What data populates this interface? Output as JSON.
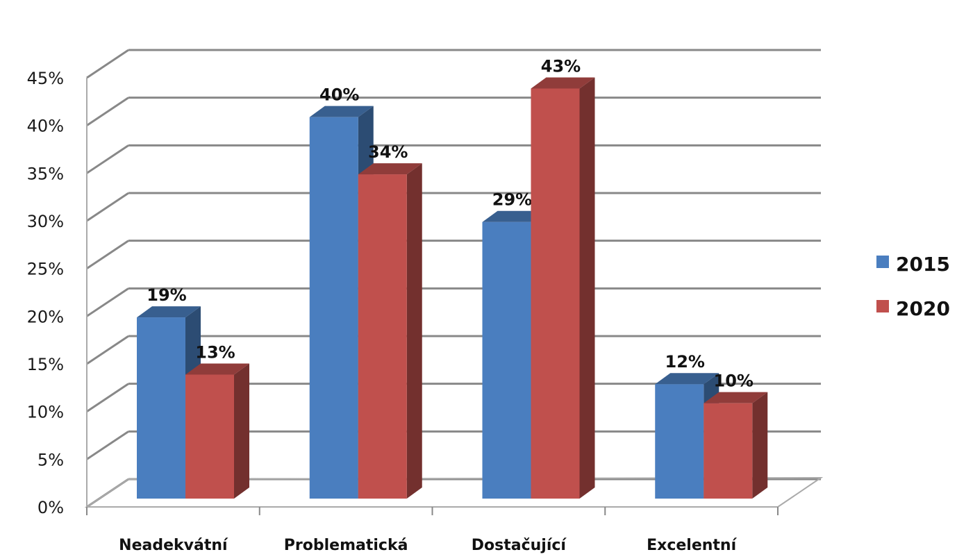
{
  "chart_data": {
    "type": "bar",
    "categories": [
      "Neadekvátní",
      "Problematická",
      "Dostačující",
      "Excelentní"
    ],
    "series": [
      {
        "name": "2015",
        "values": [
          19,
          40,
          29,
          12
        ],
        "color": "#4a7ebf"
      },
      {
        "name": "2020",
        "values": [
          13,
          34,
          43,
          10
        ],
        "color": "#c0504d"
      }
    ],
    "data_labels": [
      [
        "19%",
        "40%",
        "29%",
        "12%"
      ],
      [
        "13%",
        "34%",
        "43%",
        "10%"
      ]
    ],
    "y_ticks": [
      "0%",
      "5%",
      "10%",
      "15%",
      "20%",
      "25%",
      "30%",
      "35%",
      "40%",
      "45%"
    ],
    "ylim": [
      0,
      45
    ],
    "y_unit": "%",
    "grid": true,
    "style": "3d-clustered-column",
    "legend_position": "right",
    "title": "",
    "xlabel": "",
    "ylabel": ""
  }
}
